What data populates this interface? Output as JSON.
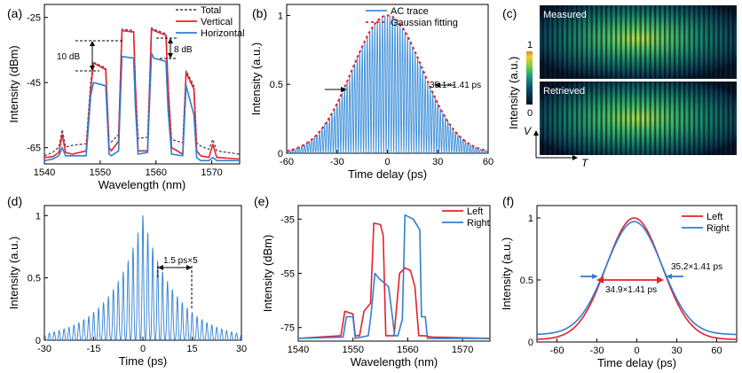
{
  "colors": {
    "red": "#e8202a",
    "blue": "#2f7fd2",
    "total": "#555566",
    "ac_trace": "#3d8fd9",
    "gauss": "#e8202a"
  },
  "chart_data": [
    {
      "panel": "(a)",
      "type": "line",
      "xlabel": "Wavelength (nm)",
      "ylabel": "Intensity (dBm)",
      "xlim": [
        1540,
        1575
      ],
      "ylim": [
        -70,
        -21
      ],
      "xticks": [
        1540,
        1550,
        1560,
        1570
      ],
      "yticks": [
        -25,
        -45,
        -65
      ],
      "legend": "top-right",
      "annotations": [
        "10 dB",
        "8 dB"
      ],
      "series": [
        {
          "name": "Total",
          "style": "dashed",
          "x": [
            1540,
            1541.5,
            1542.6,
            1543.2,
            1543.8,
            1545,
            1547.5,
            1548.3,
            1548.8,
            1551,
            1551.6,
            1552,
            1553.3,
            1553.9,
            1556,
            1556.3,
            1556.8,
            1558.5,
            1559.2,
            1559.6,
            1561.8,
            1562.2,
            1562.8,
            1564.8,
            1565.4,
            1566.8,
            1567.3,
            1568,
            1569.5,
            1570.2,
            1570.9,
            1575
          ],
          "y": [
            -67.5,
            -66.5,
            -64.8,
            -59.5,
            -64.8,
            -64.3,
            -63.8,
            -45,
            -38.8,
            -40.5,
            -63,
            -63.3,
            -61,
            -28.6,
            -29,
            -45,
            -62.2,
            -61.8,
            -28.2,
            -28.6,
            -30,
            -46,
            -62.5,
            -63.5,
            -41.4,
            -46,
            -63.5,
            -64.5,
            -65.5,
            -62.5,
            -66,
            -67
          ]
        },
        {
          "name": "Vertical",
          "style": "solid",
          "x": [
            1540,
            1541.5,
            1542.6,
            1543.2,
            1543.8,
            1545,
            1547.5,
            1548.3,
            1548.8,
            1551,
            1551.6,
            1552,
            1553.3,
            1553.9,
            1556,
            1556.3,
            1556.8,
            1558.5,
            1559.2,
            1559.6,
            1561.8,
            1562.2,
            1562.8,
            1564.8,
            1565.4,
            1566.8,
            1567.3,
            1568,
            1569.5,
            1570.2,
            1570.9,
            1575
          ],
          "y": [
            -68,
            -67.8,
            -66.5,
            -61,
            -66.5,
            -67,
            -66,
            -47,
            -39,
            -41,
            -65,
            -66,
            -63,
            -29,
            -29.5,
            -46,
            -66,
            -66,
            -28.5,
            -29,
            -30.5,
            -47,
            -65,
            -67,
            -42,
            -47,
            -66,
            -67.5,
            -68,
            -64,
            -68,
            -68.5
          ]
        },
        {
          "name": "Horizontal",
          "style": "solid",
          "x": [
            1540,
            1541.5,
            1542.6,
            1543.2,
            1543.8,
            1545,
            1547.5,
            1548.3,
            1548.8,
            1551,
            1551.6,
            1552,
            1553.3,
            1553.9,
            1556,
            1556.3,
            1556.8,
            1558.5,
            1559.2,
            1559.6,
            1561.8,
            1562.2,
            1562.8,
            1564.8,
            1565.4,
            1566.8,
            1567.3,
            1568,
            1569.5,
            1570.2,
            1570.9,
            1575
          ],
          "y": [
            -69,
            -68.5,
            -67.5,
            -65,
            -67.5,
            -67.5,
            -67.5,
            -49,
            -45,
            -46,
            -67,
            -67.5,
            -66,
            -37,
            -37.5,
            -52,
            -67,
            -66.5,
            -36,
            -37.5,
            -38.5,
            -54,
            -67,
            -67.5,
            -46,
            -55,
            -68,
            -69,
            -69,
            -68,
            -69,
            -69
          ]
        }
      ]
    },
    {
      "panel": "(b)",
      "type": "line",
      "xlabel": "Time delay (ps)",
      "ylabel": "Intensity (a.u.)",
      "xlim": [
        -60,
        60
      ],
      "ylim": [
        0,
        1.08
      ],
      "xticks": [
        -60,
        -30,
        0,
        30,
        60
      ],
      "yticks": [
        0,
        0.5,
        1
      ],
      "legend": "top-right",
      "annotations": [
        "35.1×1.41 ps"
      ],
      "series": [
        {
          "name": "AC trace",
          "model": "gaussian envelope × fringes",
          "amplitude": 1.0,
          "fwhm_ps": 49.5,
          "fringe_period_ps": 1.5
        },
        {
          "name": "Gaussian fitting",
          "model": "gaussian",
          "amplitude": 1.0,
          "fwhm_ps": 49.5
        }
      ]
    },
    {
      "panel": "(c)",
      "type": "heatmap",
      "labels": [
        "Measured",
        "Retrieved"
      ],
      "ylabel": "Intensity (a.u.)",
      "colorbar_ticks": [
        0,
        1
      ],
      "axis_x": "T",
      "axis_y": "V"
    },
    {
      "panel": "(d)",
      "type": "line",
      "xlabel": "Time (ps)",
      "ylabel": "Intensity (a.u.)",
      "xlim": [
        -30,
        30
      ],
      "ylim": [
        0,
        1.08
      ],
      "xticks": [
        -30,
        -15,
        0,
        15,
        30
      ],
      "yticks": [
        0,
        0.5,
        1
      ],
      "annotations": [
        "1.5 ps×5"
      ],
      "series": [
        {
          "name": "",
          "model": "peaked pulse train",
          "amplitude": 1.0,
          "decay_ps": 10,
          "pulse_period_ps": 1.5
        }
      ]
    },
    {
      "panel": "(e)",
      "type": "line",
      "xlabel": "Wavelength (nm)",
      "ylabel": "Intensity (dBm)",
      "xlim": [
        1540,
        1575
      ],
      "ylim": [
        -80,
        -30
      ],
      "xticks": [
        1540,
        1550,
        1560,
        1570
      ],
      "yticks": [
        -35,
        -55,
        -75
      ],
      "legend": "top-right",
      "series": [
        {
          "name": "Left",
          "x": [
            1540,
            1547.8,
            1548.5,
            1550,
            1550.4,
            1551.2,
            1552,
            1553.2,
            1553.8,
            1555,
            1555.5,
            1556,
            1557.5,
            1558.5,
            1559.5,
            1560.5,
            1561.3,
            1562,
            1563,
            1564.5,
            1575
          ],
          "y": [
            -79,
            -78,
            -69,
            -70,
            -78,
            -78,
            -69,
            -66,
            -36.5,
            -37,
            -41,
            -78,
            -78,
            -55,
            -53,
            -54,
            -60,
            -78,
            -78,
            -78.5,
            -79
          ]
        },
        {
          "name": "Right",
          "x": [
            1540,
            1548.2,
            1548.8,
            1550,
            1550.4,
            1552.8,
            1553.3,
            1554,
            1554.8,
            1556,
            1556.5,
            1557.2,
            1557.6,
            1558.2,
            1559,
            1559.5,
            1561,
            1562.2,
            1562.5,
            1563.2,
            1563.6,
            1575
          ],
          "y": [
            -79,
            -78.5,
            -71,
            -71,
            -79,
            -78,
            -70,
            -55,
            -57,
            -59,
            -60,
            -71,
            -78,
            -78,
            -72,
            -33.5,
            -35,
            -39,
            -71,
            -71,
            -79,
            -79
          ]
        }
      ]
    },
    {
      "panel": "(f)",
      "type": "line",
      "xlabel": "Time delay (ps)",
      "ylabel": "Intensity (a.u.)",
      "xlim": [
        -75,
        75
      ],
      "ylim": [
        0,
        1.1
      ],
      "xticks": [
        -60,
        -30,
        0,
        30,
        60
      ],
      "yticks": [
        0,
        0.5,
        1
      ],
      "legend": "top-right",
      "annotations": [
        "35.2×1.41 ps",
        "34.9×1.41 ps"
      ],
      "series": [
        {
          "name": "Left",
          "model": "gaussian",
          "amplitude": 1.0,
          "center_ps": -2,
          "fwhm_ps": 49.2
        },
        {
          "name": "Right",
          "model": "gaussian + baseline",
          "amplitude": 0.97,
          "center_ps": -2,
          "fwhm_ps": 49.6,
          "baseline": 0.06
        }
      ]
    }
  ]
}
